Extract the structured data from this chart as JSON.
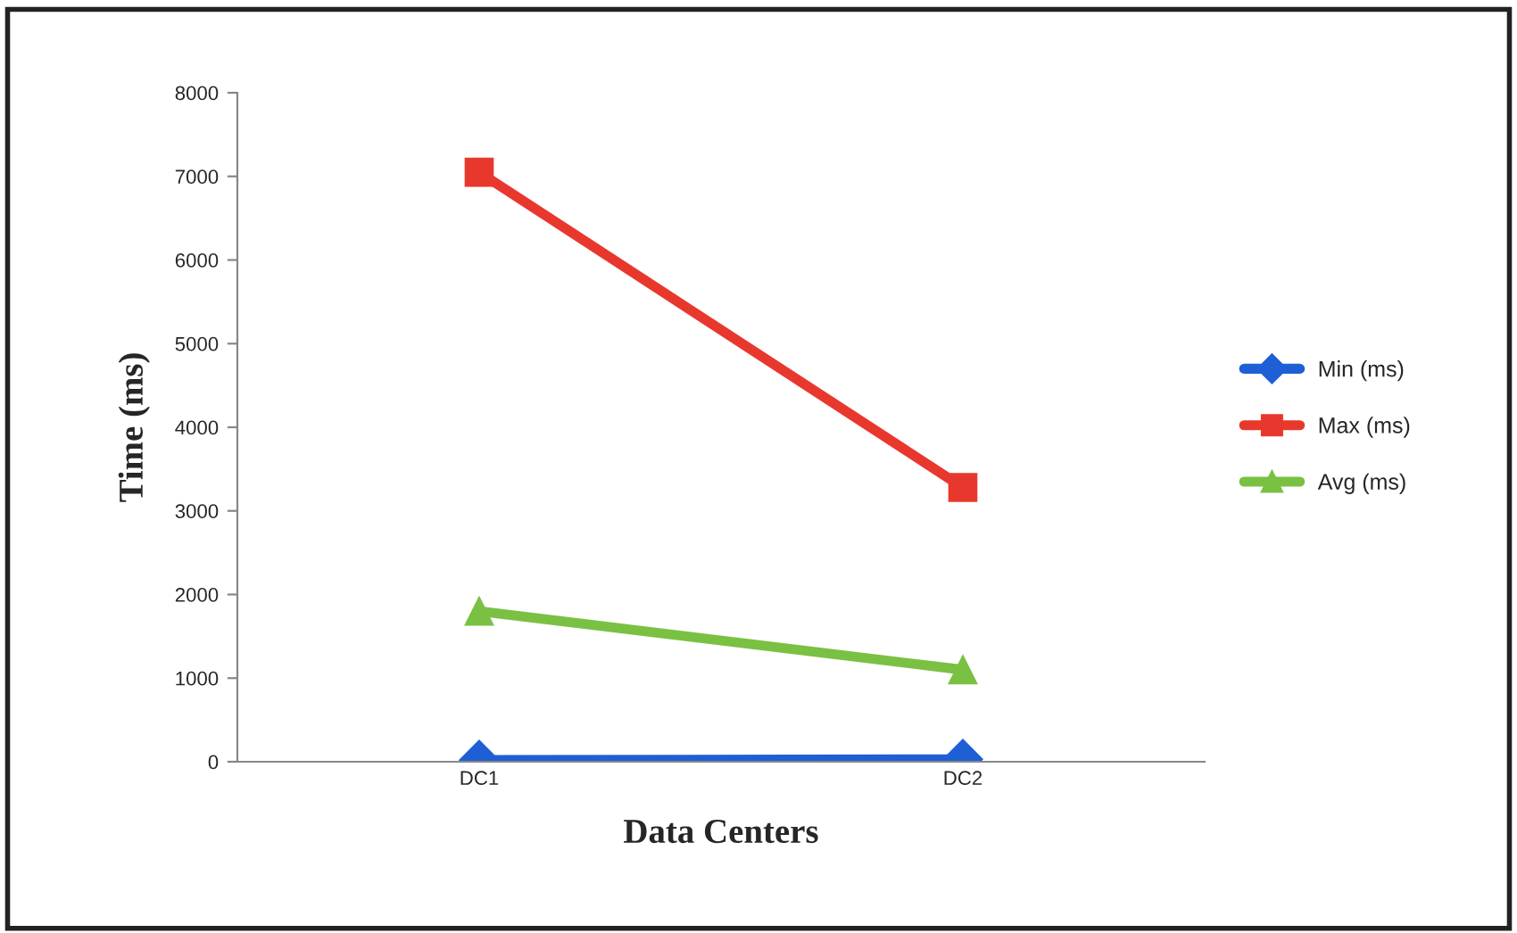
{
  "chart_data": {
    "type": "line",
    "xlabel": "Data Centers",
    "ylabel": "Time (ms)",
    "categories": [
      "DC1",
      "DC2"
    ],
    "series": [
      {
        "name": "Min (ms)",
        "color": "#1f5fd6",
        "values": [
          20,
          30
        ],
        "marker": "diamond"
      },
      {
        "name": "Max (ms)",
        "color": "#e8382e",
        "values": [
          7050,
          3280
        ],
        "marker": "square"
      },
      {
        "name": "Avg (ms)",
        "color": "#7ac143",
        "values": [
          1800,
          1100
        ],
        "marker": "triangle"
      }
    ],
    "ylim": [
      0,
      8000
    ],
    "yticks": [
      0,
      1000,
      2000,
      3000,
      4000,
      5000,
      6000,
      7000,
      8000
    ],
    "grid": false,
    "legend": "right"
  }
}
